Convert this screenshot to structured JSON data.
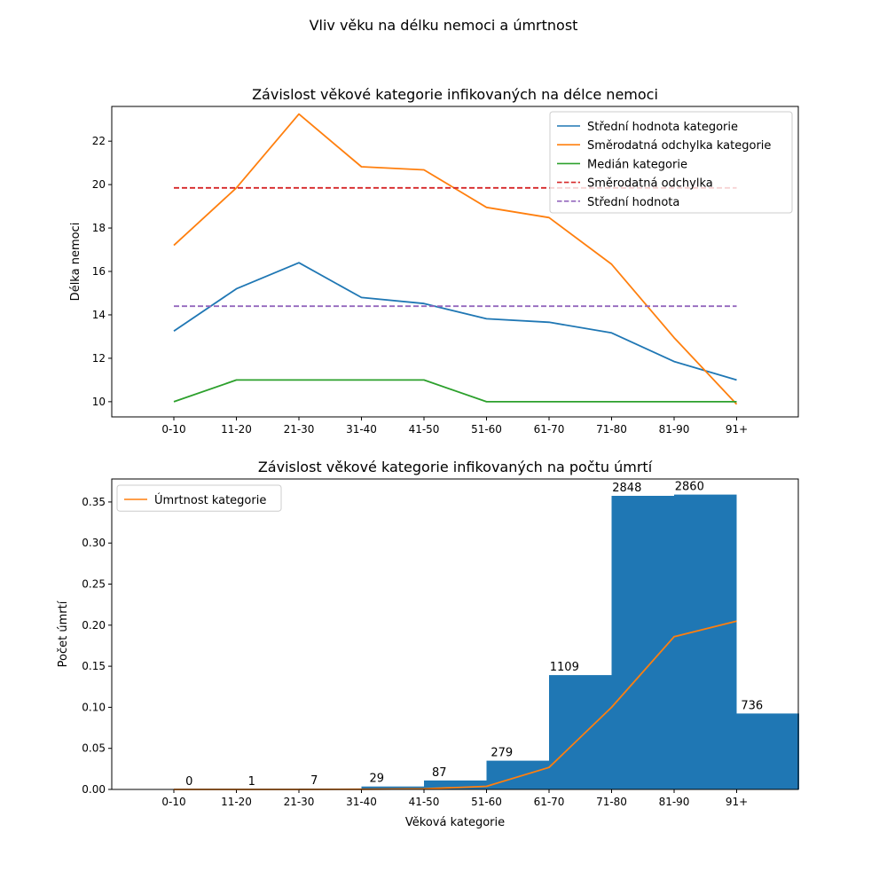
{
  "figure": {
    "suptitle": "Vliv věku na délku nemoci a úmrtnost"
  },
  "chart_data": [
    {
      "type": "line",
      "title": "Závislost věkové kategorie infikovaných na délce nemoci",
      "xlabel": "",
      "ylabel": "Délka nemoci",
      "categories": [
        "0-10",
        "11-20",
        "21-30",
        "31-40",
        "41-50",
        "51-60",
        "61-70",
        "71-80",
        "81-90",
        "91+"
      ],
      "ylim": [
        9.3,
        23.6
      ],
      "yticks": [
        10,
        12,
        14,
        16,
        18,
        20,
        22
      ],
      "legend_position": "top-right",
      "series": [
        {
          "name": "Střední hodnota kategorie",
          "color": "#1f77b4",
          "style": "solid",
          "values": [
            13.25,
            15.2,
            16.4,
            14.8,
            14.52,
            13.82,
            13.66,
            13.17,
            11.85,
            11.0
          ]
        },
        {
          "name": "Směrodatná odchylka kategorie",
          "color": "#ff7f0e",
          "style": "solid",
          "values": [
            17.2,
            19.85,
            23.25,
            20.82,
            20.68,
            18.95,
            18.48,
            16.33,
            12.95,
            9.88
          ]
        },
        {
          "name": "Medián kategorie",
          "color": "#2ca02c",
          "style": "solid",
          "values": [
            10,
            11,
            11,
            11,
            11,
            10,
            10,
            10,
            10,
            10
          ]
        },
        {
          "name": "Směrodatná odchylka",
          "color": "#d62728",
          "style": "dashed",
          "values": [
            19.85,
            19.85,
            19.85,
            19.85,
            19.85,
            19.85,
            19.85,
            19.85,
            19.85,
            19.85
          ]
        },
        {
          "name": "Střední hodnota",
          "color": "#9467bd",
          "style": "dashed",
          "values": [
            14.4,
            14.4,
            14.4,
            14.4,
            14.4,
            14.4,
            14.4,
            14.4,
            14.4,
            14.4
          ]
        }
      ]
    },
    {
      "type": "bar",
      "title": "Závislost věkové kategorie infikovaných na počtu úmrtí",
      "xlabel": "Věková kategorie",
      "ylabel": "Počet úmrtí",
      "categories": [
        "0-10",
        "11-20",
        "21-30",
        "31-40",
        "41-50",
        "51-60",
        "61-70",
        "71-80",
        "81-90",
        "91+"
      ],
      "ylim": [
        0,
        0.378
      ],
      "yticks": [
        "0.00",
        "0.05",
        "0.10",
        "0.15",
        "0.20",
        "0.25",
        "0.30",
        "0.35"
      ],
      "legend_position": "top-left",
      "bar_color": "#1f77b4",
      "bar_values": [
        0.0,
        0.0001,
        0.0009,
        0.0036,
        0.0109,
        0.035,
        0.1392,
        0.3575,
        0.359,
        0.0924
      ],
      "bar_labels": [
        "0",
        "1",
        "7",
        "29",
        "87",
        "279",
        "1109",
        "2848",
        "2860",
        "736"
      ],
      "series": [
        {
          "name": "Úmrtnost kategorie",
          "color": "#ff7f0e",
          "style": "solid",
          "values": [
            0.0,
            0.0,
            0.0,
            0.0002,
            0.0008,
            0.0038,
            0.0268,
            0.1,
            0.186,
            0.205
          ]
        }
      ]
    }
  ]
}
